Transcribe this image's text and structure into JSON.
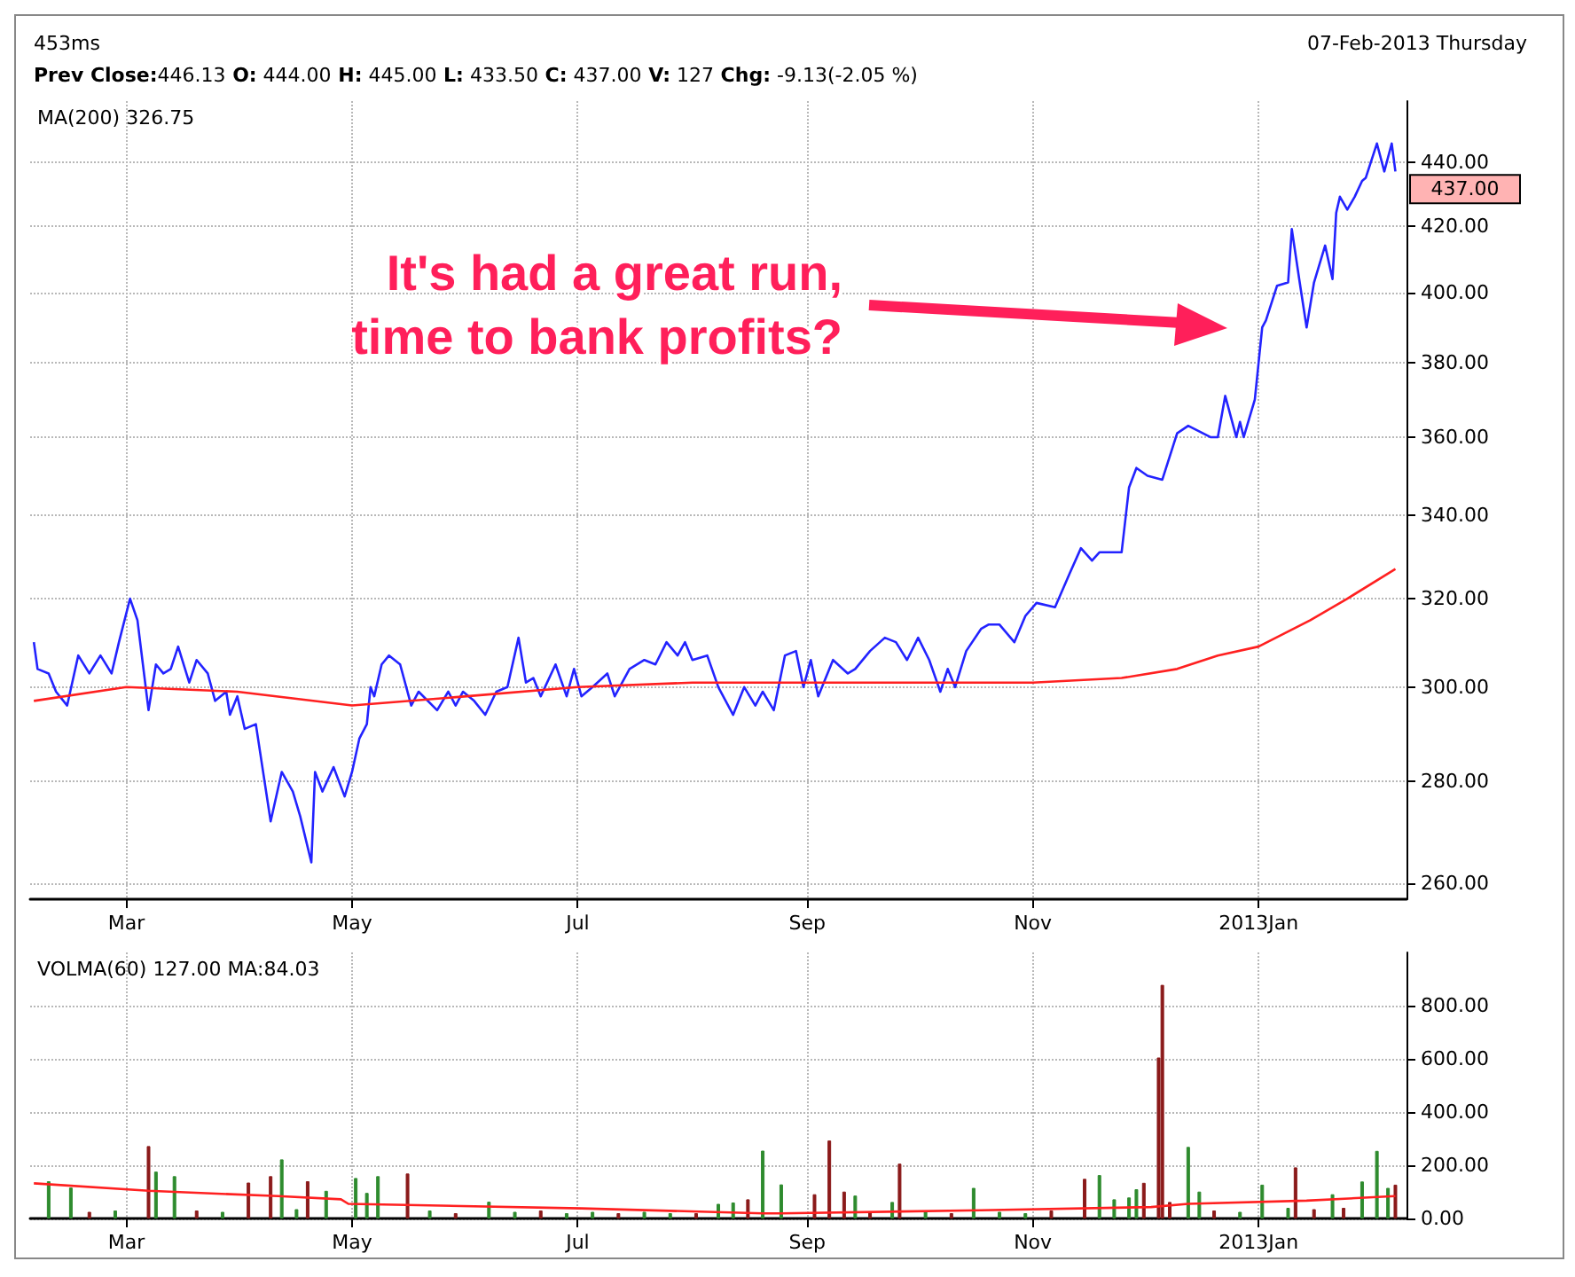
{
  "chart_data": [
    {
      "type": "line",
      "log": "y",
      "grid": true,
      "xlim": [
        "2012-02-04",
        "2013-02-10"
      ],
      "xticks": [
        {
          "value": "2012-03-01",
          "label": "Mar"
        },
        {
          "value": "2012-05-01",
          "label": "May"
        },
        {
          "value": "2012-07-01",
          "label": "Jul"
        },
        {
          "value": "2012-09-01",
          "label": "Sep"
        },
        {
          "value": "2012-11-01",
          "label": "Nov"
        },
        {
          "value": "2013-01-01",
          "label": "2013Jan"
        }
      ],
      "ylim": [
        257,
        460
      ],
      "yticks": [
        {
          "value": 260,
          "label": "260.00"
        },
        {
          "value": 280,
          "label": "280.00"
        },
        {
          "value": 300,
          "label": "300.00"
        },
        {
          "value": 320,
          "label": "320.00"
        },
        {
          "value": 340,
          "label": "340.00"
        },
        {
          "value": 360,
          "label": "360.00"
        },
        {
          "value": 380,
          "label": "380.00"
        },
        {
          "value": 400,
          "label": "400.00"
        },
        {
          "value": 420,
          "label": "420.00"
        },
        {
          "value": 440,
          "label": "440.00"
        }
      ],
      "annotations": [
        "453ms",
        "07-Feb-2013 Thursday",
        "Prev Close:446.13 O: 444.00 H: 445.00 L: 433.50 C: 437.00 V: 127 Chg: -9.13(-2.05 %)",
        "MA(200) 326.75",
        "It's had a great run,\ntime to bank profits?",
        {
          "text": "437.00",
          "x": "2013-02-07",
          "y": 437
        }
      ],
      "series": [
        {
          "color": "#2323ff",
          "x": [
            "2012-02-05",
            "2012-02-06",
            "2012-02-09",
            "2012-02-11",
            "2012-02-14",
            "2012-02-17",
            "2012-02-20",
            "2012-02-23",
            "2012-02-26",
            "2012-02-28",
            "2012-03-02",
            "2012-03-04",
            "2012-03-07",
            "2012-03-09",
            "2012-03-11",
            "2012-03-13",
            "2012-03-15",
            "2012-03-18",
            "2012-03-20",
            "2012-03-23",
            "2012-03-25",
            "2012-03-28",
            "2012-03-29",
            "2012-03-31",
            "2012-04-02",
            "2012-04-05",
            "2012-04-09",
            "2012-04-12",
            "2012-04-15",
            "2012-04-17",
            "2012-04-20",
            "2012-04-21",
            "2012-04-23",
            "2012-04-26",
            "2012-04-29",
            "2012-05-01",
            "2012-05-03",
            "2012-05-05",
            "2012-05-06",
            "2012-05-07",
            "2012-05-09",
            "2012-05-11",
            "2012-05-14",
            "2012-05-17",
            "2012-05-19",
            "2012-05-24",
            "2012-05-27",
            "2012-05-29",
            "2012-05-31",
            "2012-06-03",
            "2012-06-06",
            "2012-06-09",
            "2012-06-12",
            "2012-06-15",
            "2012-06-17",
            "2012-06-19",
            "2012-06-21",
            "2012-06-25",
            "2012-06-28",
            "2012-06-30",
            "2012-07-02",
            "2012-07-05",
            "2012-07-09",
            "2012-07-11",
            "2012-07-15",
            "2012-07-19",
            "2012-07-22",
            "2012-07-25",
            "2012-07-28",
            "2012-07-30",
            "2012-08-01",
            "2012-08-05",
            "2012-08-08",
            "2012-08-12",
            "2012-08-15",
            "2012-08-18",
            "2012-08-20",
            "2012-08-23",
            "2012-08-26",
            "2012-08-29",
            "2012-08-31",
            "2012-09-02",
            "2012-09-04",
            "2012-09-08",
            "2012-09-12",
            "2012-09-14",
            "2012-09-18",
            "2012-09-22",
            "2012-09-25",
            "2012-09-28",
            "2012-10-01",
            "2012-10-04",
            "2012-10-07",
            "2012-10-09",
            "2012-10-11",
            "2012-10-14",
            "2012-10-18",
            "2012-10-20",
            "2012-10-23",
            "2012-10-27",
            "2012-10-30",
            "2012-11-02",
            "2012-11-07",
            "2012-11-11",
            "2012-11-14",
            "2012-11-17",
            "2012-11-19",
            "2012-11-25",
            "2012-11-27",
            "2012-11-29",
            "2012-12-02",
            "2012-12-06",
            "2012-12-10",
            "2012-12-13",
            "2012-12-15",
            "2012-12-19",
            "2012-12-21",
            "2012-12-23",
            "2012-12-26",
            "2012-12-27",
            "2012-12-28",
            "2012-12-31",
            "2013-01-02",
            "2013-01-03",
            "2013-01-06",
            "2013-01-09",
            "2013-01-10",
            "2013-01-12",
            "2013-01-14",
            "2013-01-16",
            "2013-01-19",
            "2013-01-21",
            "2013-01-22",
            "2013-01-23",
            "2013-01-25",
            "2013-01-27",
            "2013-01-29",
            "2013-01-30",
            "2013-02-02",
            "2013-02-04",
            "2013-02-06",
            "2013-02-07"
          ],
          "values": [
            310,
            304,
            303,
            299,
            296,
            307,
            303,
            307,
            303,
            310,
            320,
            315,
            295,
            305,
            303,
            304,
            309,
            301,
            306,
            303,
            297,
            299,
            294,
            298,
            291,
            292,
            272,
            282,
            278,
            273,
            264,
            282,
            278,
            283,
            277,
            282,
            289,
            292,
            300,
            298,
            305,
            307,
            305,
            296,
            299,
            295,
            299,
            296,
            299,
            297,
            294,
            299,
            300,
            311,
            301,
            302,
            298,
            305,
            298,
            304,
            298,
            300,
            303,
            298,
            304,
            306,
            305,
            310,
            307,
            310,
            306,
            307,
            300,
            294,
            300,
            296,
            299,
            295,
            307,
            308,
            300,
            306,
            298,
            306,
            303,
            304,
            308,
            311,
            310,
            306,
            311,
            306,
            299,
            304,
            300,
            308,
            313,
            314,
            314,
            310,
            316,
            319,
            318,
            326,
            332,
            329,
            331,
            331,
            347,
            352,
            350,
            349,
            361,
            363,
            362,
            360,
            360,
            371,
            360,
            364,
            360,
            370,
            390,
            392,
            402,
            403,
            419,
            404,
            390,
            403,
            414,
            404,
            424,
            429,
            425,
            429,
            434,
            435,
            446,
            437,
            446,
            437
          ]
        },
        {
          "color": "#ff2020",
          "x": [
            "2012-02-05",
            "2012-03-01",
            "2012-03-31",
            "2012-05-01",
            "2012-06-01",
            "2012-07-01",
            "2012-08-01",
            "2012-09-01",
            "2012-10-01",
            "2012-11-01",
            "2012-11-25",
            "2012-12-10",
            "2012-12-21",
            "2013-01-01",
            "2013-01-15",
            "2013-01-25",
            "2013-02-07"
          ],
          "values": [
            297,
            300,
            299,
            296,
            298,
            300,
            301,
            301,
            301,
            301,
            302,
            304,
            307,
            309,
            315,
            320,
            327
          ]
        }
      ]
    },
    {
      "type": "bar",
      "grid": true,
      "xlim": [
        "2012-02-04",
        "2013-02-10"
      ],
      "xticks": [
        {
          "value": "2012-03-01",
          "label": "Mar"
        },
        {
          "value": "2012-05-01",
          "label": "May"
        },
        {
          "value": "2012-07-01",
          "label": "Jul"
        },
        {
          "value": "2012-09-01",
          "label": "Sep"
        },
        {
          "value": "2012-11-01",
          "label": "Nov"
        },
        {
          "value": "2013-01-01",
          "label": "2013Jan"
        }
      ],
      "ylim": [
        0,
        1000
      ],
      "yticks": [
        {
          "value": 0,
          "label": "0.00"
        },
        {
          "value": 200,
          "label": "200.00"
        },
        {
          "value": 400,
          "label": "400.00"
        },
        {
          "value": 600,
          "label": "600.00"
        },
        {
          "value": 800,
          "label": "800.00"
        }
      ],
      "annotations": [
        "VOLMA(60) 127.00 MA:84.03"
      ],
      "series": [
        {
          "x": [
            "2012-02-09",
            "2012-02-15",
            "2012-02-20",
            "2012-02-27",
            "2012-03-07",
            "2012-03-09",
            "2012-03-14",
            "2012-03-20",
            "2012-03-27",
            "2012-04-03",
            "2012-04-09",
            "2012-04-12",
            "2012-04-16",
            "2012-04-19",
            "2012-04-24",
            "2012-05-02",
            "2012-05-05",
            "2012-05-08",
            "2012-05-16",
            "2012-05-22",
            "2012-05-29",
            "2012-06-07",
            "2012-06-14",
            "2012-06-21",
            "2012-06-28",
            "2012-07-05",
            "2012-07-12",
            "2012-07-19",
            "2012-07-26",
            "2012-08-02",
            "2012-08-08",
            "2012-08-12",
            "2012-08-16",
            "2012-08-20",
            "2012-08-25",
            "2012-09-03",
            "2012-09-07",
            "2012-09-11",
            "2012-09-14",
            "2012-09-18",
            "2012-09-24",
            "2012-09-26",
            "2012-10-03",
            "2012-10-10",
            "2012-10-16",
            "2012-10-23",
            "2012-10-30",
            "2012-11-06",
            "2012-11-15",
            "2012-11-19",
            "2012-11-23",
            "2012-11-27",
            "2012-11-29",
            "2012-12-01",
            "2012-12-05",
            "2012-12-06",
            "2012-12-08",
            "2012-12-13",
            "2012-12-16",
            "2012-12-20",
            "2012-12-27",
            "2013-01-02",
            "2013-01-09",
            "2013-01-11",
            "2013-01-16",
            "2013-01-21",
            "2013-01-24",
            "2013-01-29",
            "2013-02-02",
            "2013-02-05",
            "2013-02-07"
          ],
          "values": [
            140,
            116,
            25,
            30,
            272,
            176,
            159,
            30,
            25,
            135,
            159,
            222,
            35,
            140,
            104,
            152,
            96,
            159,
            169,
            30,
            20,
            63,
            25,
            30,
            20,
            25,
            20,
            25,
            20,
            20,
            55,
            60,
            72,
            255,
            128,
            91,
            293,
            101,
            86,
            25,
            62,
            206,
            25,
            20,
            115,
            25,
            20,
            30,
            149,
            163,
            72,
            79,
            110,
            134,
            605,
            878,
            62,
            269,
            101,
            30,
            25,
            127,
            40,
            192,
            35,
            91,
            40,
            139,
            254,
            115,
            127
          ],
          "colors": [
            "#2e8b2e",
            "#2e8b2e",
            "#8b1a1a",
            "#2e8b2e",
            "#8b1a1a",
            "#2e8b2e",
            "#2e8b2e",
            "#8b1a1a",
            "#2e8b2e",
            "#8b1a1a",
            "#8b1a1a",
            "#2e8b2e",
            "#2e8b2e",
            "#8b1a1a",
            "#2e8b2e",
            "#2e8b2e",
            "#2e8b2e",
            "#2e8b2e",
            "#8b1a1a",
            "#2e8b2e",
            "#8b1a1a",
            "#2e8b2e",
            "#2e8b2e",
            "#8b1a1a",
            "#2e8b2e",
            "#2e8b2e",
            "#8b1a1a",
            "#2e8b2e",
            "#2e8b2e",
            "#8b1a1a",
            "#2e8b2e",
            "#2e8b2e",
            "#8b1a1a",
            "#2e8b2e",
            "#2e8b2e",
            "#8b1a1a",
            "#8b1a1a",
            "#8b1a1a",
            "#2e8b2e",
            "#8b1a1a",
            "#2e8b2e",
            "#8b1a1a",
            "#2e8b2e",
            "#8b1a1a",
            "#2e8b2e",
            "#2e8b2e",
            "#2e8b2e",
            "#8b1a1a",
            "#8b1a1a",
            "#2e8b2e",
            "#2e8b2e",
            "#2e8b2e",
            "#2e8b2e",
            "#8b1a1a",
            "#8b1a1a",
            "#8b1a1a",
            "#8b1a1a",
            "#2e8b2e",
            "#2e8b2e",
            "#8b1a1a",
            "#2e8b2e",
            "#2e8b2e",
            "#2e8b2e",
            "#8b1a1a",
            "#8b1a1a",
            "#2e8b2e",
            "#8b1a1a",
            "#2e8b2e",
            "#2e8b2e",
            "#2e8b2e",
            "#8b1a1a"
          ]
        },
        {
          "type": "line",
          "color": "#ff2020",
          "x": [
            "2012-02-05",
            "2012-03-07",
            "2012-04-11",
            "2012-04-28",
            "2012-04-30",
            "2012-07-02",
            "2012-08-20",
            "2012-08-25",
            "2012-10-18",
            "2012-12-03",
            "2012-12-13",
            "2013-01-14",
            "2013-02-07"
          ],
          "values": [
            132,
            104,
            84,
            72,
            55,
            38,
            19,
            19,
            31,
            43,
            55,
            67,
            84
          ]
        }
      ]
    }
  ]
}
